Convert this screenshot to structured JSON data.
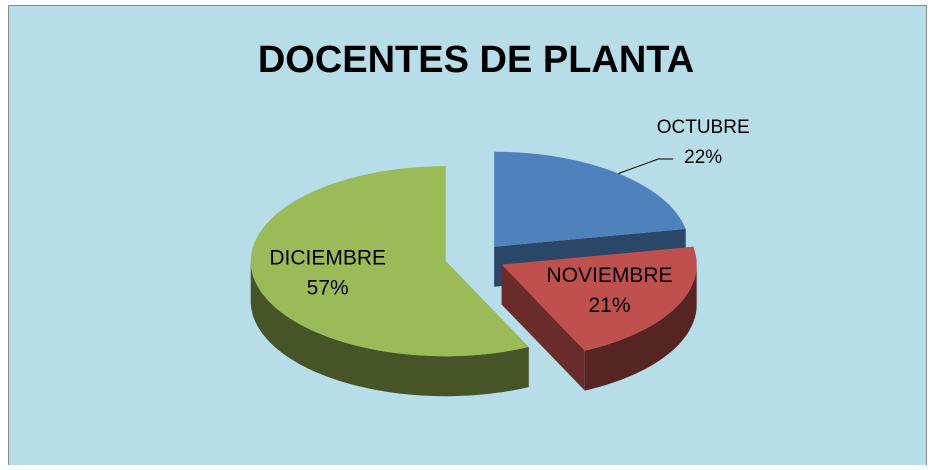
{
  "chart_data": {
    "type": "pie",
    "title": "DOCENTES DE PLANTA",
    "categories": [
      "OCTUBRE",
      "NOVIEMBRE",
      "DICIEMBRE"
    ],
    "values": [
      22,
      21,
      57
    ],
    "value_labels": [
      "22%",
      "21%",
      "57%"
    ],
    "colors": [
      "#4f81bd",
      "#c0504d",
      "#9bbb59"
    ]
  }
}
